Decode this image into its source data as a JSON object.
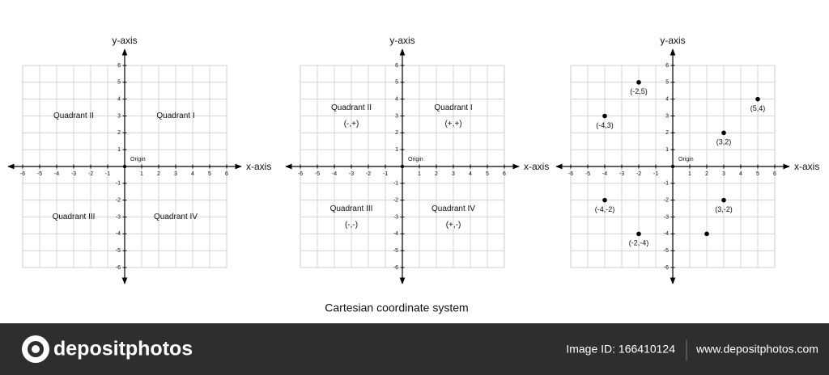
{
  "title": "Cartesian coordinate system",
  "chart_data": [
    {
      "type": "plane",
      "x_label": "x-axis",
      "y_label": "y-axis",
      "origin_label": "Origin",
      "xlim": [
        -6,
        6
      ],
      "ylim": [
        -6,
        6
      ],
      "xticks": [
        -6,
        -5,
        -4,
        -3,
        -2,
        -1,
        1,
        2,
        3,
        4,
        5,
        6
      ],
      "yticks": [
        -6,
        -5,
        -4,
        -3,
        -2,
        -1,
        1,
        2,
        3,
        4,
        5,
        6
      ],
      "grid": true,
      "quadrants": [
        {
          "name": "Quadrant I"
        },
        {
          "name": "Quadrant II"
        },
        {
          "name": "Quadrant III"
        },
        {
          "name": "Quadrant IV"
        }
      ]
    },
    {
      "type": "plane",
      "x_label": "x-axis",
      "y_label": "y-axis",
      "origin_label": "Origin",
      "xlim": [
        -6,
        6
      ],
      "ylim": [
        -6,
        6
      ],
      "xticks": [
        -6,
        -5,
        -4,
        -3,
        -2,
        -1,
        1,
        2,
        3,
        4,
        5,
        6
      ],
      "yticks": [
        -6,
        -5,
        -4,
        -3,
        -2,
        -1,
        1,
        2,
        3,
        4,
        5,
        6
      ],
      "grid": true,
      "quadrants": [
        {
          "name": "Quadrant I",
          "sign": "(+,+)"
        },
        {
          "name": "Quadrant II",
          "sign": "(-,+)"
        },
        {
          "name": "Quadrant III",
          "sign": "(-,-)"
        },
        {
          "name": "Quadrant IV",
          "sign": "(+,-)"
        }
      ]
    },
    {
      "type": "scatter",
      "x_label": "x-axis",
      "y_label": "y-axis",
      "origin_label": "Origin",
      "xlim": [
        -6,
        6
      ],
      "ylim": [
        -6,
        6
      ],
      "xticks": [
        -6,
        -5,
        -4,
        -3,
        -2,
        -1,
        1,
        2,
        3,
        4,
        5,
        6
      ],
      "yticks": [
        -6,
        -5,
        -4,
        -3,
        -2,
        -1,
        1,
        2,
        3,
        4,
        5,
        6
      ],
      "grid": true,
      "color": "#000000",
      "x": [
        -2,
        5,
        -4,
        3,
        -4,
        3,
        -2,
        2
      ],
      "values": [
        5,
        4,
        3,
        2,
        -2,
        -2,
        -4,
        -4
      ],
      "value_labels": [
        "(-2,5)",
        "(5,4)",
        "(-4,3)",
        "(3,2)",
        "(-4,-2)",
        "(3,-2)",
        "(-2,-4)",
        null
      ]
    }
  ],
  "footer": {
    "brand": "depositphotos",
    "image_id": "Image ID: 166410124",
    "url": "www.depositphotos.com"
  }
}
